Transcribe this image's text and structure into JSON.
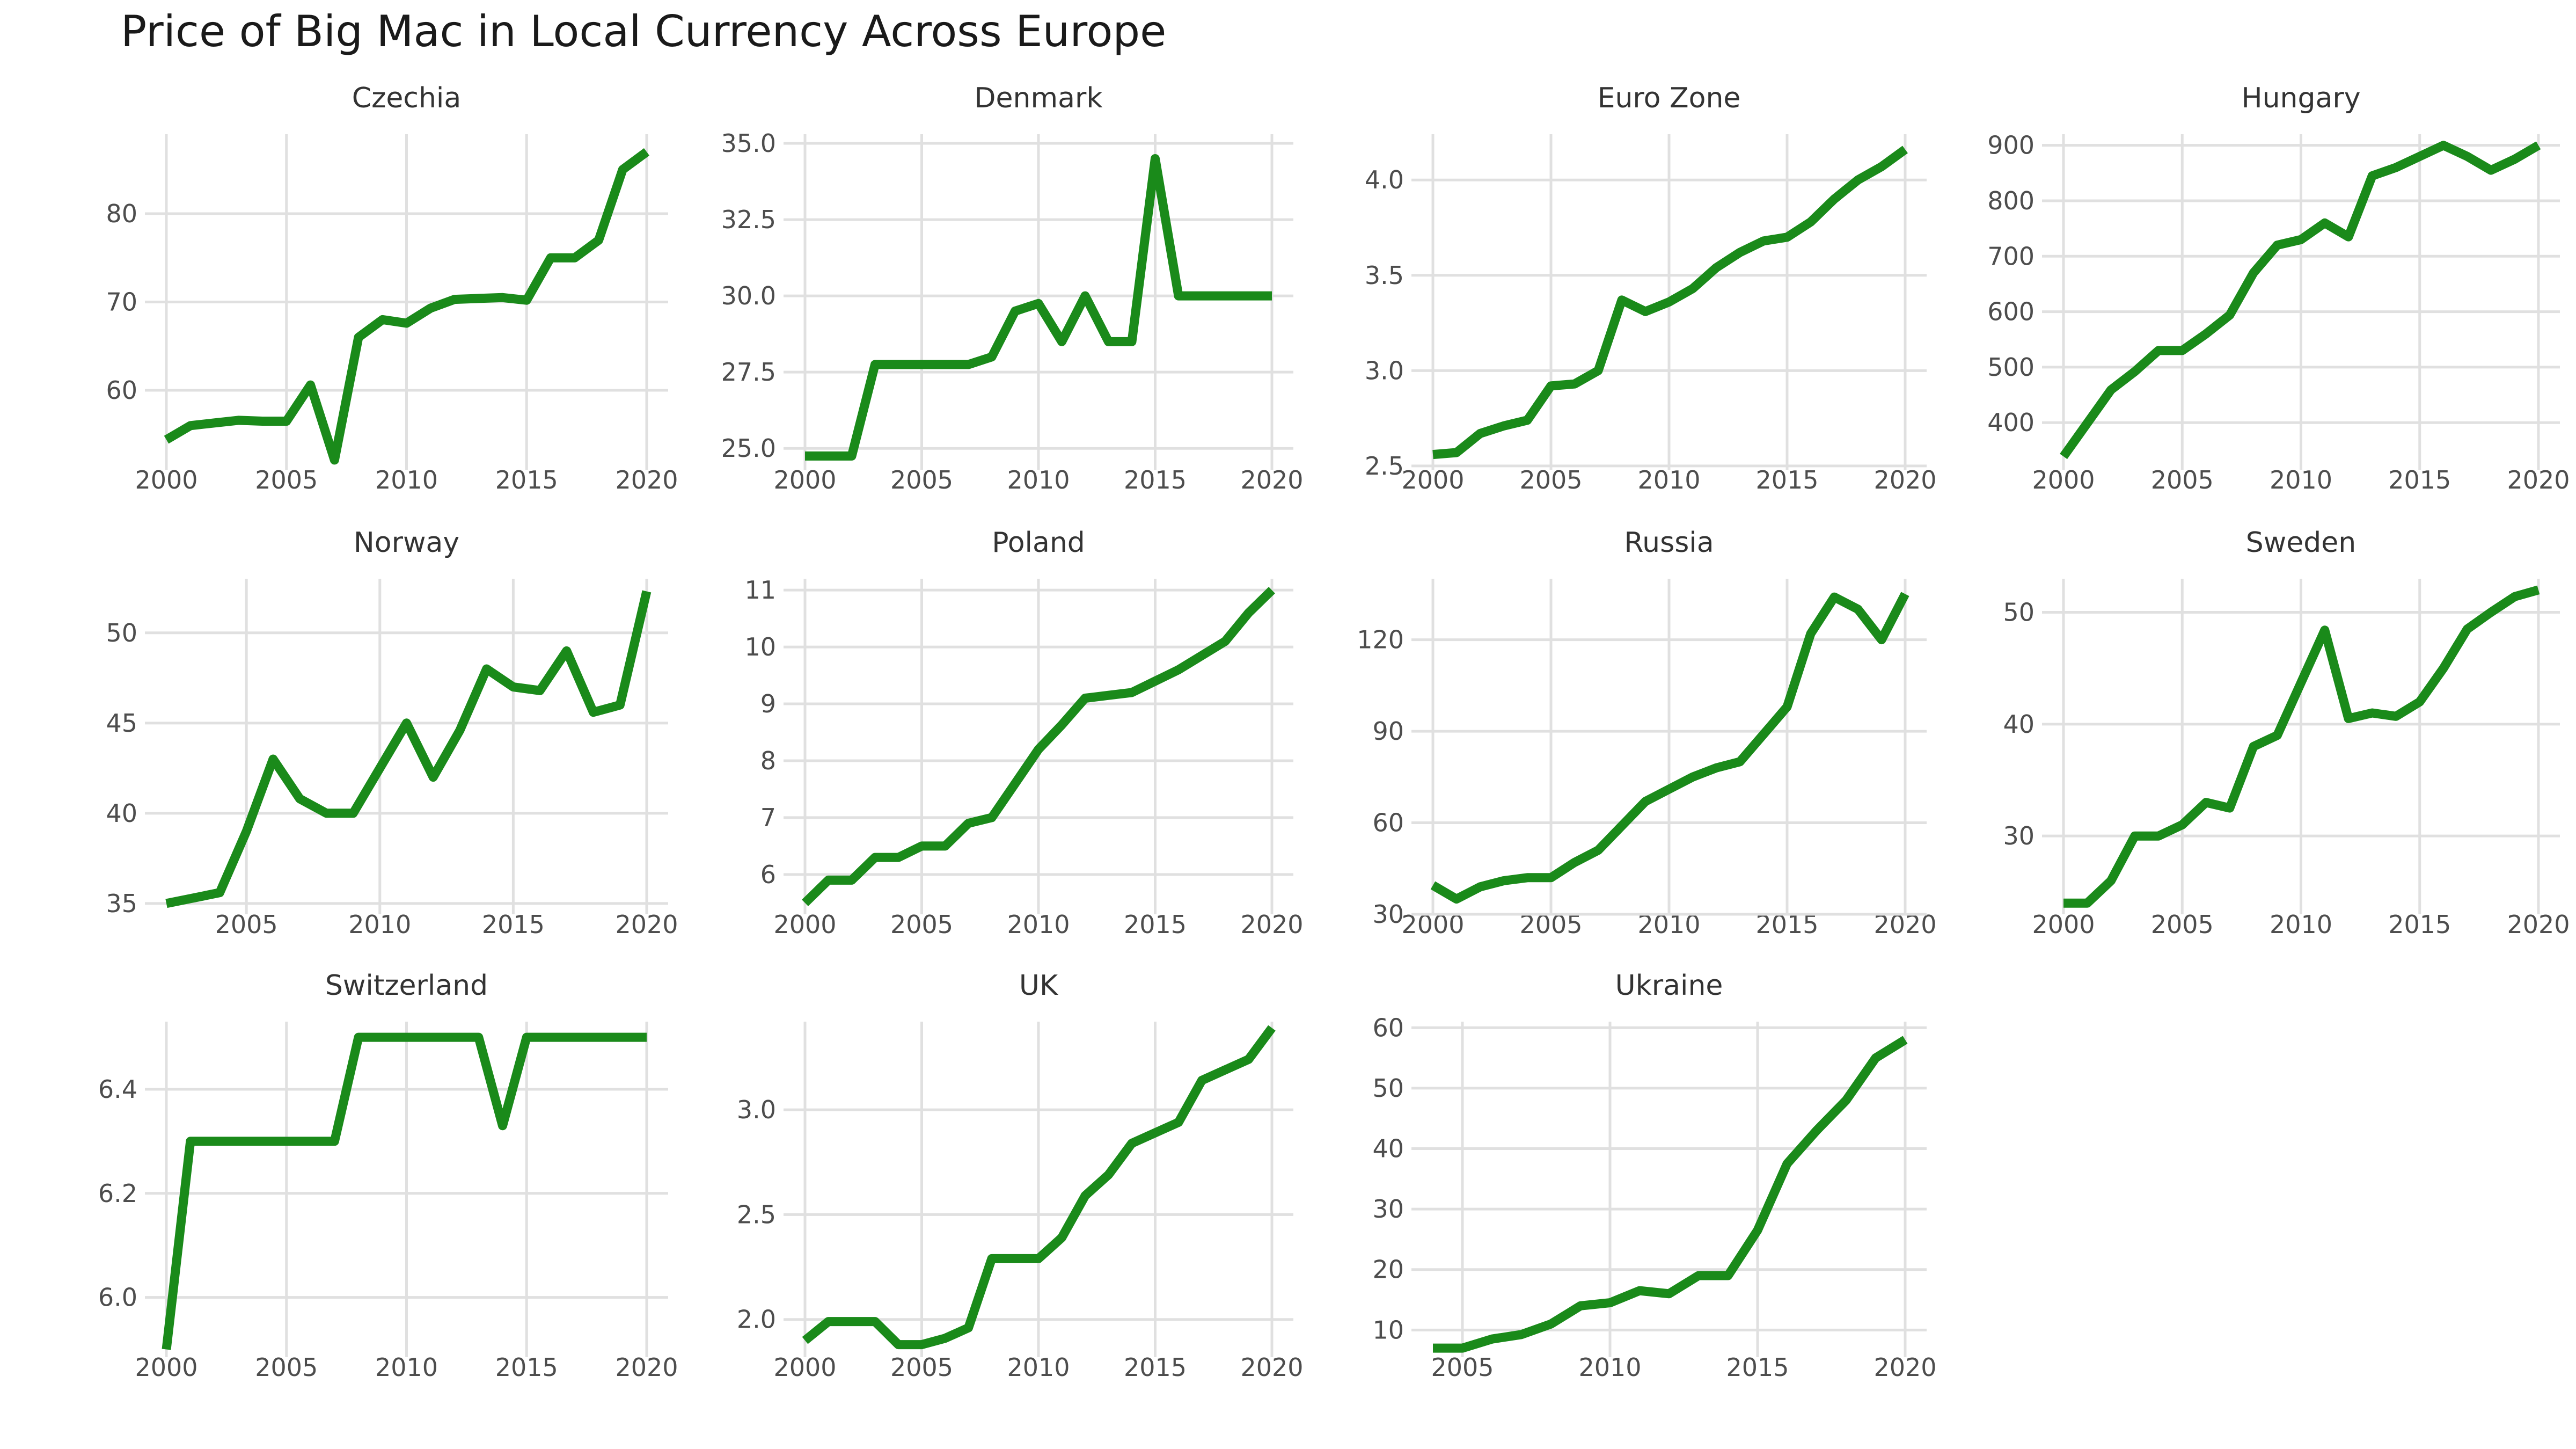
{
  "title": "Price of Big Mac in Local Currency Across Europe",
  "line_color": "#1a8a1a",
  "chart_data": [
    {
      "type": "line",
      "title": "Czechia",
      "x": [
        2000,
        2001,
        2002,
        2003,
        2004,
        2005,
        2006,
        2007,
        2008,
        2009,
        2010,
        2011,
        2012,
        2013,
        2014,
        2015,
        2016,
        2017,
        2018,
        2019,
        2020
      ],
      "y": [
        54.4,
        56.0,
        56.3,
        56.6,
        56.5,
        56.5,
        60.6,
        52.1,
        66.0,
        68.0,
        67.6,
        69.3,
        70.3,
        70.4,
        70.5,
        70.2,
        75.0,
        75.0,
        77.0,
        85.0,
        87.0
      ],
      "ylim": [
        51,
        89
      ],
      "yticks": [
        60,
        70,
        80
      ],
      "xticks": [
        2000,
        2005,
        2010,
        2015,
        2020
      ],
      "xlim": [
        2000,
        2020
      ]
    },
    {
      "type": "line",
      "title": "Denmark",
      "x": [
        2000,
        2001,
        2002,
        2003,
        2004,
        2005,
        2006,
        2007,
        2008,
        2009,
        2010,
        2011,
        2012,
        2013,
        2014,
        2015,
        2016,
        2017,
        2018,
        2019,
        2020
      ],
      "y": [
        24.75,
        24.75,
        24.75,
        27.75,
        27.75,
        27.75,
        27.75,
        27.75,
        28.0,
        29.5,
        29.75,
        28.5,
        30.0,
        28.5,
        28.5,
        34.5,
        30.0,
        30.0,
        30.0,
        30.0,
        30.0
      ],
      "ylim": [
        24.3,
        35.3
      ],
      "yticks": [
        25.0,
        27.5,
        30.0,
        32.5,
        35.0
      ],
      "ytick_labels": [
        "25.0",
        "27.5",
        "30.0",
        "32.5",
        "35.0"
      ],
      "xticks": [
        2000,
        2005,
        2010,
        2015,
        2020
      ],
      "xlim": [
        2000,
        2020
      ]
    },
    {
      "type": "line",
      "title": "Euro Zone",
      "x": [
        2000,
        2001,
        2002,
        2003,
        2004,
        2005,
        2006,
        2007,
        2008,
        2009,
        2010,
        2011,
        2012,
        2013,
        2014,
        2015,
        2016,
        2017,
        2018,
        2019,
        2020
      ],
      "y": [
        2.56,
        2.57,
        2.67,
        2.71,
        2.74,
        2.92,
        2.93,
        3.0,
        3.37,
        3.31,
        3.36,
        3.43,
        3.54,
        3.62,
        3.68,
        3.7,
        3.78,
        3.9,
        4.0,
        4.07,
        4.16
      ],
      "ylim": [
        2.48,
        4.24
      ],
      "yticks": [
        2.5,
        3.0,
        3.5,
        4.0
      ],
      "ytick_labels": [
        "2.5",
        "3.0",
        "3.5",
        "4.0"
      ],
      "xticks": [
        2000,
        2005,
        2010,
        2015,
        2020
      ],
      "xlim": [
        2000,
        2020
      ]
    },
    {
      "type": "line",
      "title": "Hungary",
      "x": [
        2000,
        2001,
        2002,
        2003,
        2004,
        2005,
        2006,
        2007,
        2008,
        2009,
        2010,
        2011,
        2012,
        2013,
        2014,
        2015,
        2016,
        2017,
        2018,
        2019,
        2020
      ],
      "y": [
        339,
        399,
        459,
        492,
        530,
        530,
        560,
        594,
        670,
        720,
        730,
        760,
        735,
        845,
        860,
        880,
        900,
        880,
        855,
        875,
        900
      ],
      "ylim": [
        315,
        920
      ],
      "yticks": [
        400,
        500,
        600,
        700,
        800,
        900
      ],
      "xticks": [
        2000,
        2005,
        2010,
        2015,
        2020
      ],
      "xlim": [
        2000,
        2020
      ]
    },
    {
      "type": "line",
      "title": "Norway",
      "x": [
        2002,
        2003,
        2004,
        2005,
        2006,
        2007,
        2008,
        2009,
        2010,
        2011,
        2012,
        2013,
        2014,
        2015,
        2016,
        2017,
        2018,
        2019,
        2020
      ],
      "y": [
        35.0,
        35.3,
        35.6,
        39.0,
        43.0,
        40.8,
        40.0,
        40.0,
        42.5,
        45.0,
        42.0,
        44.6,
        48.0,
        47.0,
        46.8,
        49.0,
        45.6,
        46.0,
        52.3
      ],
      "ylim": [
        34.4,
        53.0
      ],
      "yticks": [
        35,
        40,
        45,
        50
      ],
      "xticks": [
        2005,
        2010,
        2015,
        2020
      ],
      "xlim": [
        2002,
        2020
      ]
    },
    {
      "type": "line",
      "title": "Poland",
      "x": [
        2000,
        2001,
        2002,
        2003,
        2004,
        2005,
        2006,
        2007,
        2008,
        2009,
        2010,
        2011,
        2012,
        2013,
        2014,
        2015,
        2016,
        2017,
        2018,
        2019,
        2020
      ],
      "y": [
        5.5,
        5.9,
        5.9,
        6.3,
        6.3,
        6.5,
        6.5,
        6.9,
        7.0,
        7.6,
        8.2,
        8.63,
        9.1,
        9.15,
        9.2,
        9.4,
        9.6,
        9.85,
        10.1,
        10.6,
        11.0
      ],
      "ylim": [
        5.3,
        11.2
      ],
      "yticks": [
        6,
        7,
        8,
        9,
        10,
        11
      ],
      "xticks": [
        2000,
        2005,
        2010,
        2015,
        2020
      ],
      "xlim": [
        2000,
        2020
      ]
    },
    {
      "type": "line",
      "title": "Russia",
      "x": [
        2000,
        2001,
        2002,
        2003,
        2004,
        2005,
        2006,
        2007,
        2008,
        2009,
        2010,
        2011,
        2012,
        2013,
        2014,
        2015,
        2016,
        2017,
        2018,
        2019,
        2020
      ],
      "y": [
        39.5,
        35.0,
        39.0,
        41.0,
        42.0,
        42.0,
        47.0,
        51.0,
        59.0,
        67.0,
        71.0,
        75.0,
        78.0,
        80.0,
        89.0,
        98.0,
        122.0,
        134.0,
        130.0,
        120.0,
        135.0
      ],
      "ylim": [
        30,
        140
      ],
      "yticks": [
        30,
        60,
        90,
        120
      ],
      "xticks": [
        2000,
        2005,
        2010,
        2015,
        2020
      ],
      "xlim": [
        2000,
        2020
      ]
    },
    {
      "type": "line",
      "title": "Sweden",
      "x": [
        2000,
        2001,
        2002,
        2003,
        2004,
        2005,
        2006,
        2007,
        2008,
        2009,
        2010,
        2011,
        2012,
        2013,
        2014,
        2015,
        2016,
        2017,
        2018,
        2019,
        2020
      ],
      "y": [
        24.0,
        24.0,
        26.0,
        30.0,
        30.0,
        31.0,
        33.0,
        32.5,
        38.0,
        39.0,
        43.7,
        48.4,
        40.5,
        41.0,
        40.7,
        42.0,
        45.0,
        48.5,
        50.0,
        51.4,
        52.0
      ],
      "ylim": [
        23.0,
        53.0
      ],
      "yticks": [
        30,
        40,
        50
      ],
      "xticks": [
        2000,
        2005,
        2010,
        2015,
        2020
      ],
      "xlim": [
        2000,
        2020
      ]
    },
    {
      "type": "line",
      "title": "Switzerland",
      "x": [
        2000,
        2001,
        2002,
        2003,
        2004,
        2005,
        2006,
        2007,
        2008,
        2009,
        2010,
        2011,
        2012,
        2013,
        2014,
        2015,
        2016,
        2017,
        2018,
        2019,
        2020
      ],
      "y": [
        5.9,
        6.3,
        6.3,
        6.3,
        6.3,
        6.3,
        6.3,
        6.3,
        6.5,
        6.5,
        6.5,
        6.5,
        6.5,
        6.5,
        6.33,
        6.5,
        6.5,
        6.5,
        6.5,
        6.5,
        6.5
      ],
      "ylim": [
        5.885,
        6.53
      ],
      "yticks": [
        6.0,
        6.2,
        6.4
      ],
      "ytick_labels": [
        "6.0",
        "6.2",
        "6.4"
      ],
      "xticks": [
        2000,
        2005,
        2010,
        2015,
        2020
      ],
      "xlim": [
        2000,
        2020
      ]
    },
    {
      "type": "line",
      "title": "UK",
      "x": [
        2000,
        2001,
        2002,
        2003,
        2004,
        2005,
        2006,
        2007,
        2008,
        2009,
        2010,
        2011,
        2012,
        2013,
        2014,
        2015,
        2016,
        2017,
        2018,
        2019,
        2020
      ],
      "y": [
        1.9,
        1.99,
        1.99,
        1.99,
        1.88,
        1.88,
        1.91,
        1.96,
        2.29,
        2.29,
        2.29,
        2.39,
        2.59,
        2.69,
        2.84,
        2.89,
        2.94,
        3.14,
        3.19,
        3.24,
        3.39
      ],
      "ylim": [
        1.82,
        3.42
      ],
      "yticks": [
        2.0,
        2.5,
        3.0
      ],
      "ytick_labels": [
        "2.0",
        "2.5",
        "3.0"
      ],
      "xticks": [
        2000,
        2005,
        2010,
        2015,
        2020
      ],
      "xlim": [
        2000,
        2020
      ]
    },
    {
      "type": "line",
      "title": "Ukraine",
      "x": [
        2004,
        2005,
        2006,
        2007,
        2008,
        2009,
        2010,
        2011,
        2012,
        2013,
        2014,
        2015,
        2016,
        2017,
        2018,
        2019,
        2020
      ],
      "y": [
        7.0,
        7.0,
        8.5,
        9.25,
        11.0,
        14.0,
        14.5,
        16.5,
        16.0,
        19.0,
        19.0,
        26.5,
        37.5,
        43.0,
        48.0,
        55.0,
        58.0
      ],
      "ylim": [
        5.5,
        61.0
      ],
      "yticks": [
        10,
        20,
        30,
        40,
        50,
        60
      ],
      "xticks": [
        2005,
        2010,
        2015,
        2020
      ],
      "xlim": [
        2004,
        2020
      ]
    }
  ]
}
